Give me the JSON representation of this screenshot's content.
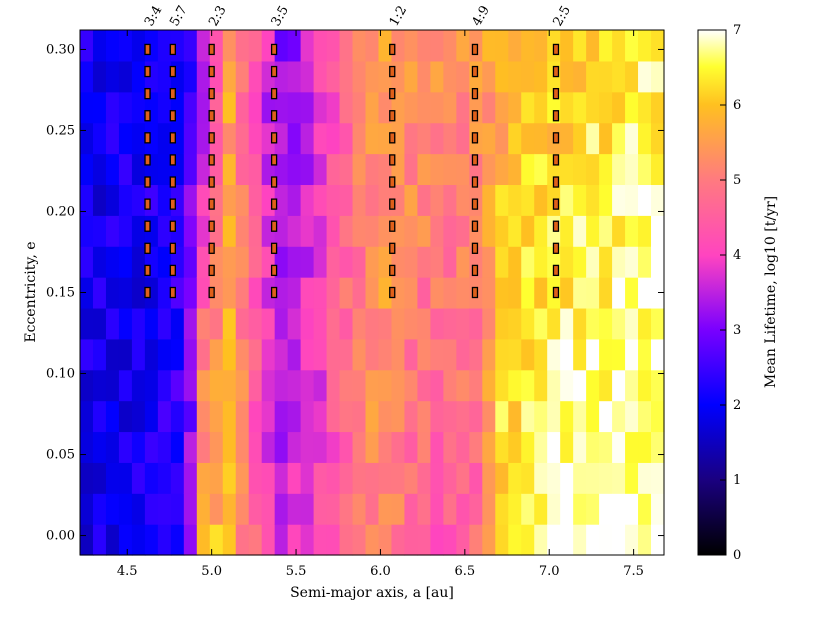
{
  "chart_data": {
    "type": "heatmap",
    "title": "",
    "xlabel": "Semi-major axis, a [au]",
    "ylabel": "Eccentricity, e",
    "xlim": [
      4.22,
      7.68
    ],
    "ylim": [
      -0.012,
      0.312
    ],
    "x_ticks": [
      "4.5",
      "5.0",
      "5.5",
      "6.0",
      "6.5",
      "7.0",
      "7.5"
    ],
    "y_ticks": [
      "0.00",
      "0.05",
      "0.10",
      "0.15",
      "0.20",
      "0.25",
      "0.30"
    ],
    "colorbar": {
      "label": "Mean Lifetime, log10 [t/yr]",
      "range": [
        0,
        7
      ],
      "ticks": [
        "0",
        "1",
        "2",
        "3",
        "4",
        "5",
        "6",
        "7"
      ],
      "colormap": "gnuplot2"
    },
    "resonances": [
      {
        "label": "3:4",
        "a": 4.62
      },
      {
        "label": "5:7",
        "a": 4.77
      },
      {
        "label": "2:3",
        "a": 5.0
      },
      {
        "label": "3:5",
        "a": 5.37
      },
      {
        "label": "1:2",
        "a": 6.07
      },
      {
        "label": "4:9",
        "a": 6.56
      },
      {
        "label": "2:5",
        "a": 7.04
      }
    ],
    "resonance_e_range": [
      0.15,
      0.3
    ],
    "lifetime_profile": [
      {
        "a": 4.3,
        "low_e": 1.95,
        "high_e": 2.0
      },
      {
        "a": 4.55,
        "low_e": 2.0,
        "high_e": 2.0
      },
      {
        "a": 4.72,
        "low_e": 2.2,
        "high_e": 2.1
      },
      {
        "a": 4.85,
        "low_e": 2.5,
        "high_e": 2.4
      },
      {
        "a": 4.95,
        "low_e": 5.9,
        "high_e": 3.2
      },
      {
        "a": 5.1,
        "low_e": 5.8,
        "high_e": 5.6
      },
      {
        "a": 5.25,
        "low_e": 4.6,
        "high_e": 4.4
      },
      {
        "a": 5.4,
        "low_e": 3.5,
        "high_e": 3.0
      },
      {
        "a": 5.6,
        "low_e": 3.9,
        "high_e": 3.6
      },
      {
        "a": 5.8,
        "low_e": 4.6,
        "high_e": 4.8
      },
      {
        "a": 6.0,
        "low_e": 5.4,
        "high_e": 5.6
      },
      {
        "a": 6.2,
        "low_e": 4.6,
        "high_e": 5.4
      },
      {
        "a": 6.4,
        "low_e": 4.4,
        "high_e": 5.3
      },
      {
        "a": 6.6,
        "low_e": 4.7,
        "high_e": 5.5
      },
      {
        "a": 6.72,
        "low_e": 6.4,
        "high_e": 5.7
      },
      {
        "a": 6.9,
        "low_e": 6.7,
        "high_e": 5.9
      },
      {
        "a": 7.1,
        "low_e": 6.85,
        "high_e": 6.1
      },
      {
        "a": 7.3,
        "low_e": 6.9,
        "high_e": 6.3
      },
      {
        "a": 7.5,
        "low_e": 6.95,
        "high_e": 6.4
      },
      {
        "a": 7.65,
        "low_e": 6.98,
        "high_e": 6.5
      }
    ]
  }
}
